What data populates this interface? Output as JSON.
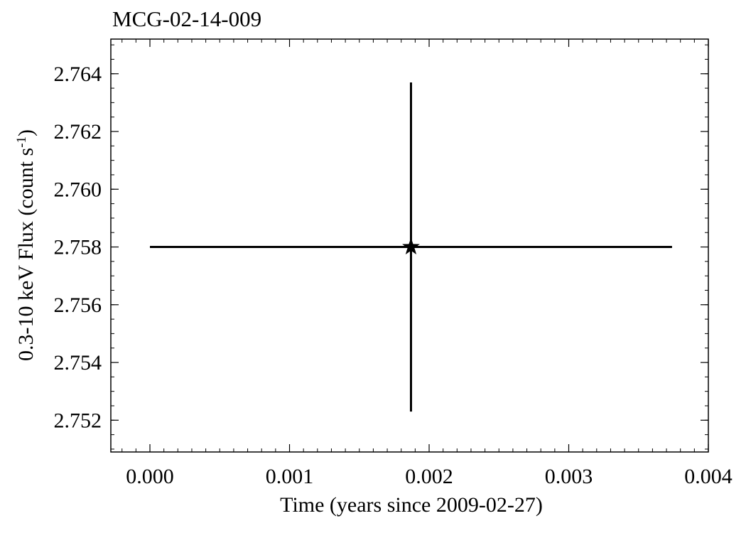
{
  "chart_data": {
    "type": "scatter",
    "title": "MCG-02-14-009",
    "xlabel": "Time (years since 2009-02-27)",
    "ylabel": {
      "text": "0.3-10 keV Flux (count s",
      "superscript": "-1",
      "suffix": ")"
    },
    "xlim": [
      -0.00028,
      0.004
    ],
    "ylim": [
      2.7509,
      2.7652
    ],
    "x_ticks": [
      "0.000",
      "0.001",
      "0.002",
      "0.003",
      "0.004"
    ],
    "y_ticks": [
      "2.752",
      "2.754",
      "2.756",
      "2.758",
      "2.760",
      "2.762",
      "2.764"
    ],
    "x_tick_values": [
      0.0,
      0.001,
      0.002,
      0.003,
      0.004
    ],
    "y_tick_values": [
      2.752,
      2.754,
      2.756,
      2.758,
      2.76,
      2.762,
      2.764
    ],
    "x_minor_step": 0.0001,
    "y_minor_step": 0.0005,
    "grid": false,
    "marker": "star",
    "colors": {
      "data": "#000000",
      "axes": "#000000"
    },
    "points": [
      {
        "x": 0.00187,
        "y": 2.758,
        "x_err_low": 0.00187,
        "x_err_high": 0.00187,
        "y_err_low": 0.0057,
        "y_err_high": 0.0057
      }
    ]
  }
}
